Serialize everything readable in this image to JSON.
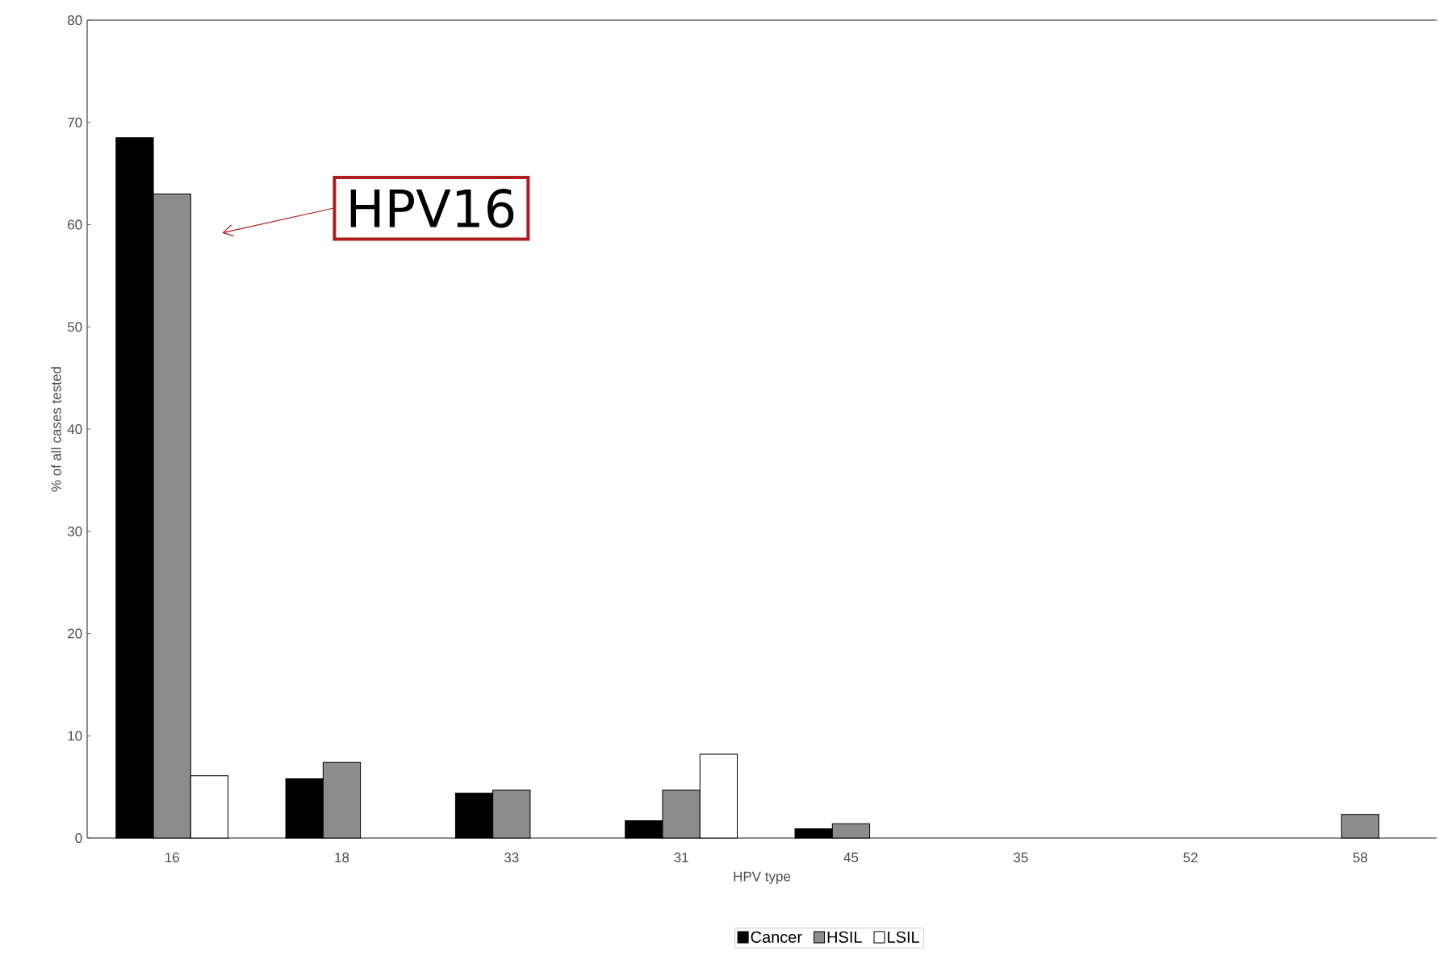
{
  "chart_data": {
    "type": "bar",
    "xlabel": "HPV type",
    "ylabel": "% of all cases tested",
    "categories": [
      "16",
      "18",
      "33",
      "31",
      "45",
      "35",
      "52",
      "58"
    ],
    "series": [
      {
        "name": "Cancer",
        "color": "#000000",
        "values": [
          68.5,
          5.8,
          4.4,
          1.7,
          0.9,
          null,
          null,
          null
        ]
      },
      {
        "name": "HSIL",
        "color": "#8c8c8c",
        "values": [
          63.0,
          7.4,
          4.7,
          4.7,
          1.4,
          null,
          null,
          2.3
        ]
      },
      {
        "name": "LSIL",
        "color": "#ffffff",
        "values": [
          6.1,
          null,
          null,
          8.2,
          null,
          null,
          null,
          null
        ]
      }
    ],
    "ylim": [
      0,
      80
    ],
    "yticks": [
      0,
      10,
      20,
      30,
      40,
      50,
      60,
      70,
      80
    ],
    "annotations": [
      "HPV16"
    ],
    "legend": "bottom",
    "grid": false
  }
}
